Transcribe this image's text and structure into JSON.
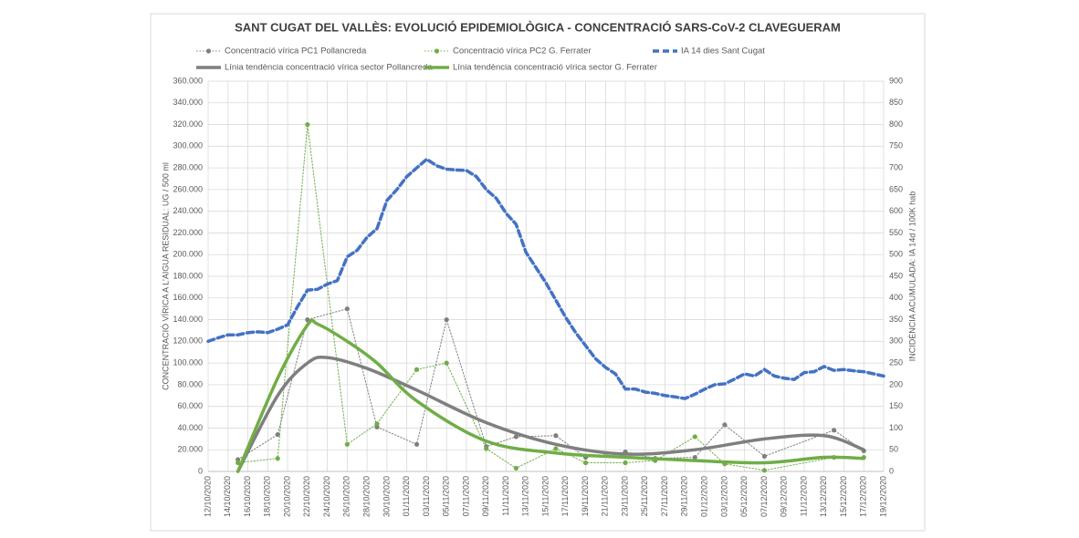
{
  "chart_data": {
    "type": "line",
    "title": "SANT CUGAT DEL VALLÈS: EVOLUCIÓ EPIDEMIOLÒGICA - CONCENTRACIÓ SARS-CoV-2 CLAVEGUERAM",
    "y_label": "CONCENTRACIÓ VÍRICA A L'AIGUA RESIDUAL: UG / 500 ml",
    "y2_label": "INCIDÈNCIA ACUMULADA: IA 14d / 100K hab",
    "grid": true,
    "xlim": [
      "12/10/2020",
      "19/12/2020"
    ],
    "xticks": [
      "12/10/2020",
      "14/10/2020",
      "16/10/2020",
      "18/10/2020",
      "20/10/2020",
      "22/10/2020",
      "24/10/2020",
      "26/10/2020",
      "28/10/2020",
      "30/10/2020",
      "01/11/2020",
      "03/11/2020",
      "05/11/2020",
      "07/11/2020",
      "09/11/2020",
      "11/11/2020",
      "13/11/2020",
      "15/11/2020",
      "17/11/2020",
      "19/11/2020",
      "21/11/2020",
      "23/11/2020",
      "25/11/2020",
      "27/11/2020",
      "29/11/2020",
      "01/12/2020",
      "03/12/2020",
      "05/12/2020",
      "07/12/2020",
      "09/12/2020",
      "11/12/2020",
      "13/12/2020",
      "15/12/2020",
      "17/12/2020",
      "19/12/2020"
    ],
    "ylim": [
      0,
      360000
    ],
    "yticks": [
      {
        "value": 0,
        "label": "0"
      },
      {
        "value": 20000,
        "label": "20.000"
      },
      {
        "value": 40000,
        "label": "40.000"
      },
      {
        "value": 60000,
        "label": "60.000"
      },
      {
        "value": 80000,
        "label": "80.000"
      },
      {
        "value": 100000,
        "label": "100.000"
      },
      {
        "value": 120000,
        "label": "120.000"
      },
      {
        "value": 140000,
        "label": "140.000"
      },
      {
        "value": 160000,
        "label": "160.000"
      },
      {
        "value": 180000,
        "label": "180.000"
      },
      {
        "value": 200000,
        "label": "200.000"
      },
      {
        "value": 220000,
        "label": "220.000"
      },
      {
        "value": 240000,
        "label": "240.000"
      },
      {
        "value": 260000,
        "label": "260.000"
      },
      {
        "value": 280000,
        "label": "280.000"
      },
      {
        "value": 300000,
        "label": "300.000"
      },
      {
        "value": 320000,
        "label": "320.000"
      },
      {
        "value": 340000,
        "label": "340.000"
      },
      {
        "value": 360000,
        "label": "360.000"
      }
    ],
    "y2lim": [
      0,
      900
    ],
    "y2ticks": [
      0,
      50,
      100,
      150,
      200,
      250,
      300,
      350,
      400,
      450,
      500,
      550,
      600,
      650,
      700,
      750,
      800,
      850,
      900
    ],
    "series": [
      {
        "name": "Concentració vírica PC1 Pollancreda",
        "color": "#7f7f7f",
        "style": "dotted-markers",
        "x": [
          "15/10/2020",
          "19/10/2020",
          "22/10/2020",
          "26/10/2020",
          "29/10/2020",
          "02/11/2020",
          "05/11/2020",
          "09/11/2020",
          "12/11/2020",
          "16/11/2020",
          "19/11/2020",
          "23/11/2020",
          "26/11/2020",
          "30/11/2020",
          "03/12/2020",
          "07/12/2020",
          "14/12/2020",
          "17/12/2020"
        ],
        "values": [
          11000,
          34000,
          140000,
          150000,
          41000,
          25000,
          140000,
          23000,
          32000,
          33000,
          13000,
          18000,
          12000,
          13000,
          43000,
          14000,
          38000,
          19000
        ]
      },
      {
        "name": "Concentració vírica PC2 G. Ferrater",
        "color": "#70ad47",
        "style": "dotted-markers",
        "x": [
          "15/10/2020",
          "19/10/2020",
          "22/10/2020",
          "26/10/2020",
          "29/10/2020",
          "02/11/2020",
          "05/11/2020",
          "09/11/2020",
          "12/11/2020",
          "16/11/2020",
          "19/11/2020",
          "23/11/2020",
          "26/11/2020",
          "30/11/2020",
          "03/12/2020",
          "07/12/2020",
          "14/12/2020",
          "17/12/2020"
        ],
        "values": [
          8000,
          12000,
          320000,
          25000,
          44000,
          94000,
          100000,
          21000,
          3000,
          21000,
          8000,
          8000,
          10000,
          32000,
          7000,
          1000,
          13000,
          13000
        ]
      },
      {
        "name": "IA 14 dies Sant Cugat",
        "color": "#4472c4",
        "style": "dashed",
        "axis": "y2",
        "x": [
          "12/10/2020",
          "13/10/2020",
          "14/10/2020",
          "15/10/2020",
          "16/10/2020",
          "17/10/2020",
          "18/10/2020",
          "19/10/2020",
          "20/10/2020",
          "21/10/2020",
          "22/10/2020",
          "23/10/2020",
          "24/10/2020",
          "25/10/2020",
          "26/10/2020",
          "27/10/2020",
          "28/10/2020",
          "29/10/2020",
          "30/10/2020",
          "31/10/2020",
          "01/11/2020",
          "02/11/2020",
          "03/11/2020",
          "04/11/2020",
          "05/11/2020",
          "06/11/2020",
          "07/11/2020",
          "08/11/2020",
          "09/11/2020",
          "10/11/2020",
          "11/11/2020",
          "12/11/2020",
          "13/11/2020",
          "14/11/2020",
          "15/11/2020",
          "16/11/2020",
          "17/11/2020",
          "18/11/2020",
          "19/11/2020",
          "20/11/2020",
          "21/11/2020",
          "22/11/2020",
          "23/11/2020",
          "24/11/2020",
          "25/11/2020",
          "26/11/2020",
          "27/11/2020",
          "28/11/2020",
          "29/11/2020",
          "30/11/2020",
          "01/12/2020",
          "02/12/2020",
          "03/12/2020",
          "04/12/2020",
          "05/12/2020",
          "06/12/2020",
          "07/12/2020",
          "08/12/2020",
          "09/12/2020",
          "10/12/2020",
          "11/12/2020",
          "12/12/2020",
          "13/12/2020",
          "14/12/2020",
          "15/12/2020",
          "16/12/2020",
          "17/12/2020",
          "18/12/2020",
          "19/12/2020"
        ],
        "values": [
          300,
          308,
          315,
          315,
          320,
          322,
          320,
          328,
          338,
          380,
          418,
          420,
          432,
          440,
          495,
          510,
          540,
          560,
          625,
          650,
          680,
          700,
          720,
          705,
          697,
          695,
          694,
          680,
          650,
          630,
          595,
          570,
          505,
          470,
          435,
          395,
          355,
          320,
          290,
          260,
          240,
          225,
          190,
          190,
          183,
          180,
          175,
          172,
          168,
          178,
          190,
          200,
          202,
          213,
          225,
          220,
          235,
          220,
          215,
          212,
          228,
          230,
          242,
          233,
          235,
          232,
          230,
          225,
          220
        ]
      },
      {
        "name": "Línia tendència concentració vírica sector Pollancreda",
        "color": "#7f7f7f",
        "style": "smooth",
        "x": [
          "15/10/2020",
          "19/10/2020",
          "22/10/2020",
          "24/10/2020",
          "28/10/2020",
          "02/11/2020",
          "09/11/2020",
          "16/11/2020",
          "23/11/2020",
          "30/11/2020",
          "07/12/2020",
          "13/12/2020",
          "17/12/2020"
        ],
        "values": [
          0,
          70000,
          100000,
          105000,
          95000,
          75000,
          45000,
          25000,
          16000,
          20000,
          30000,
          33000,
          20000
        ]
      },
      {
        "name": "Línia tendència concentració vírica sector G. Ferrater",
        "color": "#70ad47",
        "style": "smooth",
        "x": [
          "15/10/2020",
          "19/10/2020",
          "22/10/2020",
          "23/10/2020",
          "26/10/2020",
          "29/10/2020",
          "02/11/2020",
          "09/11/2020",
          "16/11/2020",
          "23/11/2020",
          "30/11/2020",
          "07/12/2020",
          "13/12/2020",
          "17/12/2020"
        ],
        "values": [
          0,
          86000,
          135000,
          136000,
          120000,
          100000,
          65000,
          28000,
          17000,
          13000,
          10000,
          8000,
          13000,
          12000
        ]
      }
    ]
  }
}
